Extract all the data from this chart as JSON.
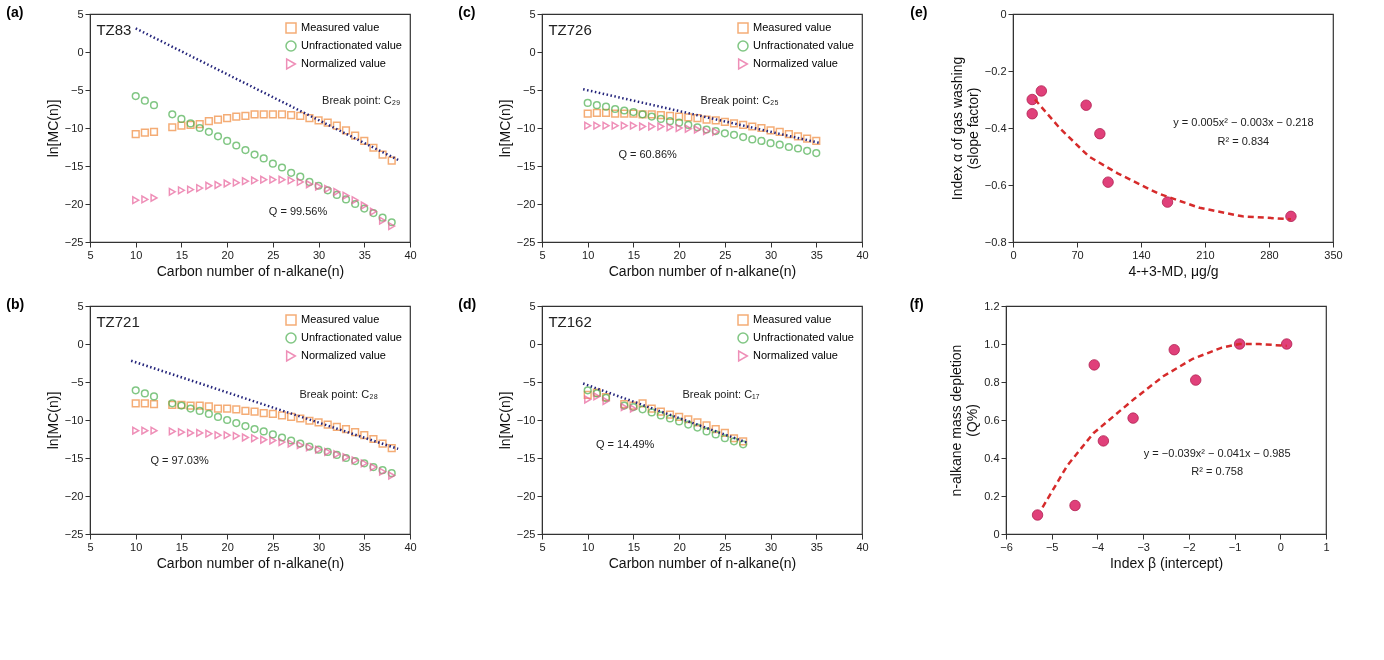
{
  "chart_data": [
    {
      "type": "scatter",
      "title": "(a)",
      "xlabel": "Carbon number of n-alkane(n)",
      "ylabel": "ln[MC(n)]",
      "xlim": [
        5,
        40
      ],
      "ylim": [
        -25,
        5
      ],
      "xticks": [
        5,
        10,
        15,
        20,
        25,
        30,
        35,
        40
      ],
      "yticks": [
        -25,
        -20,
        -15,
        -10,
        -5,
        0,
        5
      ],
      "grid": false,
      "legend": "top right",
      "annotations": [
        "TZ83",
        "Break point: C₂₉",
        "Q = 99.56%"
      ],
      "x": [
        10,
        11,
        12,
        14,
        15,
        16,
        17,
        18,
        19,
        20,
        21,
        22,
        23,
        24,
        25,
        26,
        27,
        28,
        29,
        30,
        31,
        32,
        33,
        34,
        35,
        36,
        37,
        38
      ],
      "series": [
        {
          "name": "Measured value",
          "color": "#f08a3c",
          "marker": "square",
          "values": [
            -10.8,
            -10.6,
            -10.5,
            -9.9,
            -9.7,
            -9.6,
            -9.5,
            -9.1,
            -8.9,
            -8.7,
            -8.5,
            -8.4,
            -8.2,
            -8.2,
            -8.2,
            -8.2,
            -8.3,
            -8.4,
            -8.7,
            -9.0,
            -9.3,
            -9.7,
            -10.3,
            -11.0,
            -11.7,
            -12.6,
            -13.5,
            -14.3
          ]
        },
        {
          "name": "Unfractionated value",
          "color": "#4caf50",
          "marker": "circle",
          "values": [
            -5.8,
            -6.4,
            -7.0,
            -8.2,
            -8.8,
            -9.4,
            -10.0,
            -10.5,
            -11.1,
            -11.7,
            -12.3,
            -12.9,
            -13.5,
            -14.0,
            -14.7,
            -15.2,
            -15.9,
            -16.4,
            -17.1,
            -17.6,
            -18.2,
            -18.8,
            -19.4,
            -20.0,
            -20.6,
            -21.2,
            -21.8,
            -22.4
          ]
        },
        {
          "name": "Normalized value",
          "color": "#e8609a",
          "marker": "triangle",
          "values": [
            -19.5,
            -19.4,
            -19.2,
            -18.4,
            -18.2,
            -18.1,
            -17.9,
            -17.6,
            -17.5,
            -17.3,
            -17.2,
            -17.0,
            -16.9,
            -16.8,
            -16.8,
            -16.8,
            -16.9,
            -17.1,
            -17.4,
            -17.7,
            -18.0,
            -18.4,
            -18.9,
            -19.5,
            -20.2,
            -21.0,
            -22.2,
            -22.9
          ]
        },
        {
          "type": "line",
          "color": "#23237a",
          "line_style": "dotted",
          "x": [
            10,
            38.7
          ],
          "values": [
            3.1,
            -14.2
          ]
        }
      ]
    },
    {
      "type": "scatter",
      "title": "(c)",
      "xlabel": "Carbon number of n-alkane(n)",
      "ylabel": "ln[MC(n)]",
      "xlim": [
        5,
        40
      ],
      "ylim": [
        -25,
        5
      ],
      "xticks": [
        5,
        10,
        15,
        20,
        25,
        30,
        35,
        40
      ],
      "yticks": [
        -25,
        -20,
        -15,
        -10,
        -5,
        0,
        5
      ],
      "grid": false,
      "legend": "top right",
      "annotations": [
        "TZ726",
        "Break point: C₂₅",
        "Q = 60.86%"
      ],
      "x": [
        10,
        11,
        12,
        13,
        14,
        15,
        16,
        17,
        18,
        19,
        20,
        21,
        22,
        23,
        24,
        25,
        26,
        27,
        28,
        29,
        30,
        31,
        32,
        33,
        34,
        35
      ],
      "series": [
        {
          "name": "Measured value",
          "color": "#f08a3c",
          "marker": "square",
          "values": [
            -8.1,
            -8.0,
            -8.0,
            -8.1,
            -8.1,
            -8.1,
            -8.2,
            -8.2,
            -8.3,
            -8.4,
            -8.5,
            -8.6,
            -8.7,
            -8.9,
            -9.0,
            -9.2,
            -9.4,
            -9.6,
            -9.8,
            -10.0,
            -10.3,
            -10.5,
            -10.8,
            -11.1,
            -11.4,
            -11.7
          ]
        },
        {
          "name": "Unfractionated value",
          "color": "#4caf50",
          "marker": "circle",
          "values": [
            -6.7,
            -7.0,
            -7.2,
            -7.5,
            -7.7,
            -7.9,
            -8.2,
            -8.5,
            -8.8,
            -9.1,
            -9.3,
            -9.6,
            -9.9,
            -10.2,
            -10.4,
            -10.7,
            -10.9,
            -11.2,
            -11.5,
            -11.7,
            -12.0,
            -12.2,
            -12.5,
            -12.7,
            -13.0,
            -13.3
          ]
        },
        {
          "name": "Normalized value",
          "color": "#e8609a",
          "marker": "triangle",
          "x": [
            10,
            11,
            12,
            13,
            14,
            15,
            16,
            17,
            18,
            19,
            20,
            21,
            22,
            23,
            24
          ],
          "values": [
            -9.7,
            -9.7,
            -9.7,
            -9.7,
            -9.7,
            -9.7,
            -9.8,
            -9.8,
            -9.8,
            -9.9,
            -10.0,
            -10.1,
            -10.2,
            -10.4,
            -10.5
          ]
        },
        {
          "type": "line",
          "color": "#23237a",
          "line_style": "dotted",
          "x": [
            9.5,
            35.5
          ],
          "values": [
            -4.9,
            -12.0
          ]
        }
      ]
    },
    {
      "type": "scatter",
      "title": "(e)",
      "xlabel": "4-+3-MD, μg/g",
      "ylabel": "Index α of gas washing\n(slope factor)",
      "xlim": [
        0,
        350
      ],
      "ylim": [
        -0.8,
        0
      ],
      "xticks": [
        0,
        70,
        140,
        210,
        280,
        350
      ],
      "yticks": [
        -0.8,
        -0.6,
        -0.4,
        -0.2,
        0
      ],
      "grid": false,
      "annotations": [
        "y = 0.005x² − 0.003x − 0.218",
        "R² = 0.834"
      ],
      "x": [
        21,
        21,
        31,
        80,
        95,
        104,
        169,
        304
      ],
      "series": [
        {
          "color": "#e0407a",
          "marker": "circle",
          "values": [
            -0.35,
            -0.3,
            -0.27,
            -0.32,
            -0.42,
            -0.59,
            -0.66,
            -0.71
          ]
        },
        {
          "type": "line",
          "color": "#d62b2b",
          "line_style": "dashed",
          "x": [
            24,
            51,
            83,
            115,
            159,
            204,
            251,
            304
          ],
          "values": [
            -0.3,
            -0.4,
            -0.5,
            -0.56,
            -0.63,
            -0.68,
            -0.71,
            -0.72
          ]
        }
      ]
    },
    {
      "type": "scatter",
      "title": "(b)",
      "xlabel": "Carbon number of n-alkane(n)",
      "ylabel": "ln[MC(n)]",
      "xlim": [
        5,
        40
      ],
      "ylim": [
        -25,
        5
      ],
      "xticks": [
        5,
        10,
        15,
        20,
        25,
        30,
        35,
        40
      ],
      "yticks": [
        -25,
        -20,
        -15,
        -10,
        -5,
        0,
        5
      ],
      "grid": false,
      "legend": "top right",
      "annotations": [
        "TZ721",
        "Break point: C₂₈",
        "Q = 97.03%"
      ],
      "x": [
        10,
        11,
        12,
        14,
        15,
        16,
        17,
        18,
        19,
        20,
        21,
        22,
        23,
        24,
        25,
        26,
        27,
        28,
        29,
        30,
        31,
        32,
        33,
        34,
        35,
        36,
        37,
        38
      ],
      "series": [
        {
          "name": "Measured value",
          "color": "#f08a3c",
          "marker": "square",
          "values": [
            -7.8,
            -7.8,
            -7.9,
            -8.0,
            -8.0,
            -8.1,
            -8.1,
            -8.2,
            -8.5,
            -8.5,
            -8.6,
            -8.8,
            -8.9,
            -9.1,
            -9.2,
            -9.4,
            -9.6,
            -9.8,
            -10.1,
            -10.3,
            -10.6,
            -10.9,
            -11.2,
            -11.6,
            -12.0,
            -12.5,
            -13.1,
            -13.7
          ]
        },
        {
          "name": "Unfractionated value",
          "color": "#4caf50",
          "marker": "circle",
          "values": [
            -6.1,
            -6.5,
            -6.9,
            -7.8,
            -8.1,
            -8.5,
            -8.8,
            -9.2,
            -9.6,
            -10.0,
            -10.4,
            -10.8,
            -11.2,
            -11.5,
            -11.9,
            -12.3,
            -12.7,
            -13.1,
            -13.5,
            -13.9,
            -14.2,
            -14.6,
            -15.0,
            -15.4,
            -15.7,
            -16.2,
            -16.6,
            -17.0
          ]
        },
        {
          "name": "Normalized value",
          "color": "#e8609a",
          "marker": "triangle",
          "values": [
            -11.4,
            -11.4,
            -11.4,
            -11.5,
            -11.6,
            -11.7,
            -11.7,
            -11.8,
            -12.0,
            -12.0,
            -12.1,
            -12.3,
            -12.4,
            -12.6,
            -12.7,
            -12.9,
            -13.1,
            -13.3,
            -13.6,
            -13.9,
            -14.2,
            -14.5,
            -14.9,
            -15.3,
            -15.7,
            -16.2,
            -16.8,
            -17.3
          ]
        },
        {
          "type": "line",
          "color": "#23237a",
          "line_style": "dotted",
          "x": [
            9.5,
            38.7
          ],
          "values": [
            -2.2,
            -13.8
          ]
        }
      ]
    },
    {
      "type": "scatter",
      "title": "(d)",
      "xlabel": "Carbon number of n-alkane(n)",
      "ylabel": "ln[MC(n)]",
      "xlim": [
        5,
        40
      ],
      "ylim": [
        -25,
        5
      ],
      "xticks": [
        5,
        10,
        15,
        20,
        25,
        30,
        35,
        40
      ],
      "yticks": [
        -25,
        -20,
        -15,
        -10,
        -5,
        0,
        5
      ],
      "grid": false,
      "legend": "top right",
      "annotations": [
        "TZ162",
        "Break point: C₁₇",
        "Q = 14.49%"
      ],
      "x": [
        10,
        11,
        12,
        14,
        15,
        16,
        17,
        18,
        19,
        20,
        21,
        22,
        23,
        24,
        25,
        26,
        27
      ],
      "series": [
        {
          "name": "Measured value",
          "color": "#f08a3c",
          "marker": "square",
          "values": [
            -6.7,
            -6.4,
            -7.0,
            -7.9,
            -8.1,
            -7.8,
            -8.5,
            -8.9,
            -9.3,
            -9.6,
            -9.9,
            -10.3,
            -10.7,
            -11.2,
            -11.7,
            -12.4,
            -12.8
          ]
        },
        {
          "name": "Unfractionated value",
          "color": "#4caf50",
          "marker": "circle",
          "values": [
            -6.1,
            -6.5,
            -7.1,
            -8.1,
            -8.3,
            -8.6,
            -9.0,
            -9.4,
            -9.8,
            -10.2,
            -10.6,
            -11.0,
            -11.5,
            -11.9,
            -12.4,
            -12.8,
            -13.2
          ]
        },
        {
          "name": "Normalized value",
          "color": "#e8609a",
          "marker": "triangle",
          "x": [
            10,
            11,
            12,
            14,
            15
          ],
          "values": [
            -7.3,
            -6.9,
            -7.5,
            -8.3,
            -8.5
          ]
        },
        {
          "type": "line",
          "color": "#23237a",
          "line_style": "dotted",
          "x": [
            9.5,
            27.5
          ],
          "values": [
            -5.2,
            -13.0
          ]
        }
      ]
    },
    {
      "type": "scatter",
      "title": "(f)",
      "xlabel": "Index β (intercept)",
      "ylabel": "n-alkane mass depletion\n(Q%)",
      "xlim": [
        -6,
        1
      ],
      "ylim": [
        0,
        1.2
      ],
      "xticks": [
        -6,
        -5,
        -4,
        -3,
        -2,
        -1,
        0,
        1
      ],
      "yticks": [
        0,
        0.2,
        0.4,
        0.6,
        0.8,
        {
          "value": 1,
          "label": "1.0"
        },
        1.2
      ],
      "grid": false,
      "annotations": [
        "y = −0.039x² − 0.041x − 0.985",
        "R² = 0.758"
      ],
      "x": [
        -5.31,
        -4.49,
        -4.07,
        -3.87,
        -3.22,
        -2.32,
        -1.85,
        -0.89,
        0.14
      ],
      "series": [
        {
          "color": "#e0407a",
          "marker": "circle",
          "values": [
            0.1,
            0.15,
            0.89,
            0.49,
            0.61,
            0.97,
            0.81,
            1.0,
            1.0
          ]
        },
        {
          "type": "line",
          "color": "#d62b2b",
          "line_style": "dashed",
          "x": [
            -5.2,
            -4.66,
            -4.09,
            -3.2,
            -2.56,
            -1.93,
            -1.29,
            -0.89,
            -0.46,
            0.14
          ],
          "values": [
            0.14,
            0.36,
            0.53,
            0.71,
            0.83,
            0.92,
            0.98,
            1.0,
            1.0,
            0.99
          ]
        }
      ]
    }
  ]
}
